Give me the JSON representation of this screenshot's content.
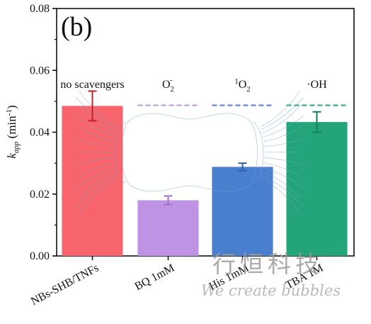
{
  "chart_data": {
    "type": "bar",
    "panel_label": "(b)",
    "ylabel": "k",
    "ylabel_sub": "app",
    "ylabel_unit": "(min",
    "ylabel_unit_sup": "-1",
    "ylabel_unit_close": ")",
    "ylim": [
      0,
      0.08
    ],
    "yticks": [
      "0.00",
      "0.02",
      "0.04",
      "0.06",
      "0.08"
    ],
    "ytick_values": [
      0,
      0.02,
      0.04,
      0.06,
      0.08
    ],
    "categories": [
      "NBs-SHB/TNFs",
      "BQ 1mM",
      "His 1mM",
      "TBA 1M"
    ],
    "values": [
      0.0485,
      0.018,
      0.0288,
      0.0433
    ],
    "errors": [
      0.0048,
      0.0014,
      0.0012,
      0.0033
    ],
    "colors": [
      "#f8646b",
      "#bf93e4",
      "#4a7fd0",
      "#23a47a"
    ],
    "reference_value": 0.0487,
    "scavenger_labels": [
      {
        "base": "no scavengers",
        "sub": "",
        "sup": ""
      },
      {
        "base": "O",
        "sub": "2",
        "sup": "-"
      },
      {
        "base": "O",
        "sub": "2",
        "sup": "1"
      },
      {
        "base": "·OH",
        "sub": "",
        "sup": ""
      }
    ]
  },
  "watermark": {
    "chinese": "行恒科技",
    "english": "We create bubbles"
  }
}
